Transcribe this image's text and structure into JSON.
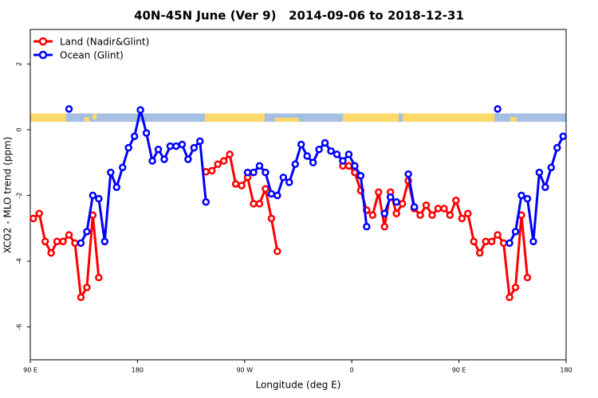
{
  "chart_data": {
    "type": "line",
    "title": "40N-45N June (Ver 9)   2014-09-06 to 2018-12-31",
    "xlabel": "Longitude (deg E)",
    "ylabel": "XCO2 - MLO trend (ppm)",
    "xlim": [
      90,
      540
    ],
    "xticks": [
      {
        "value": 90,
        "label": "90 E"
      },
      {
        "value": 180,
        "label": "180"
      },
      {
        "value": 270,
        "label": "90 W"
      },
      {
        "value": 360,
        "label": "0"
      },
      {
        "value": 450,
        "label": "90 E"
      },
      {
        "value": 540,
        "label": "180"
      }
    ],
    "ylim": [
      -7,
      3.05
    ],
    "yticks": [
      2,
      0,
      -2,
      -4,
      -6
    ],
    "legend": "top-left",
    "x": [
      92.5,
      97.5,
      102.5,
      107.5,
      112.5,
      117.5,
      122.5,
      127.5,
      132.5,
      137.5,
      142.5,
      147.5,
      152.5,
      157.5,
      162.5,
      167.5,
      172.5,
      177.5,
      182.5,
      187.5,
      192.5,
      197.5,
      202.5,
      207.5,
      212.5,
      217.5,
      222.5,
      227.5,
      232.5,
      237.5,
      242.5,
      247.5,
      252.5,
      257.5,
      262.5,
      267.5,
      272.5,
      277.5,
      282.5,
      287.5,
      292.5,
      297.5,
      302.5,
      307.5,
      312.5,
      317.5,
      322.5,
      327.5,
      332.5,
      337.5,
      342.5,
      347.5,
      352.5,
      357.5,
      362.5,
      367.5,
      372.5,
      377.5,
      382.5,
      387.5,
      392.5,
      397.5,
      402.5,
      407.5,
      412.5,
      417.5,
      422.5,
      427.5,
      432.5,
      437.5,
      442.5,
      447.5,
      452.5,
      457.5,
      462.5,
      467.5,
      472.5,
      477.5,
      482.5,
      487.5,
      492.5,
      497.5,
      502.5,
      507.5,
      512.5,
      517.5,
      522.5,
      527.5,
      532.5,
      537.5
    ],
    "series": [
      {
        "name": "Land (Nadir&Glint)",
        "color": "#ff0000",
        "values": [
          -2.7,
          -2.55,
          -3.4,
          -3.75,
          -3.4,
          -3.4,
          -3.2,
          -3.45,
          -5.1,
          -4.8,
          -2.6,
          -4.5,
          null,
          null,
          null,
          null,
          null,
          null,
          null,
          null,
          null,
          null,
          null,
          null,
          null,
          null,
          null,
          null,
          null,
          -1.28,
          -1.25,
          -1.05,
          -0.95,
          -0.75,
          -1.65,
          -1.7,
          -1.45,
          -2.25,
          -2.25,
          -1.8,
          -2.7,
          -3.7,
          null,
          null,
          null,
          null,
          null,
          null,
          null,
          null,
          null,
          null,
          -1.1,
          -1.1,
          -1.3,
          -1.85,
          -2.45,
          -2.6,
          -1.9,
          -2.95,
          -1.9,
          -2.55,
          -2.25,
          -1.55,
          -2.4,
          -2.6,
          -2.3,
          -2.6,
          -2.4,
          -2.4,
          -2.6,
          -2.15,
          -2.7,
          -2.55,
          -3.4,
          -3.75,
          -3.4,
          -3.4,
          -3.2,
          -3.45,
          -5.1,
          -4.8,
          -2.6,
          -4.5,
          null,
          null,
          null,
          null,
          null,
          null
        ]
      },
      {
        "name": "Ocean (Glint)",
        "color": "#0000ff",
        "values": [
          null,
          null,
          null,
          null,
          null,
          null,
          0.63,
          null,
          -3.45,
          -3.1,
          -2.0,
          -2.1,
          -3.4,
          -1.3,
          -1.75,
          -1.15,
          -0.55,
          -0.2,
          0.6,
          -0.1,
          -0.95,
          -0.6,
          -0.9,
          -0.5,
          -0.5,
          -0.45,
          -0.9,
          -0.55,
          -0.35,
          -2.2,
          null,
          null,
          null,
          null,
          null,
          null,
          -1.3,
          -1.3,
          -1.1,
          -1.3,
          -1.95,
          -2.0,
          -1.45,
          -1.6,
          -1.05,
          -0.45,
          -0.8,
          -1.0,
          -0.6,
          -0.4,
          -0.65,
          -0.75,
          -0.95,
          -0.75,
          -1.1,
          -1.4,
          -2.95,
          null,
          null,
          -2.55,
          -2.05,
          -2.2,
          null,
          -1.35,
          -2.35,
          null,
          null,
          null,
          null,
          null,
          null,
          null,
          null,
          null,
          null,
          null,
          null,
          null,
          0.63,
          null,
          -3.45,
          -3.1,
          -2.0,
          -2.1,
          -3.4,
          -1.3,
          -1.75,
          -1.15,
          -0.55,
          -0.2
        ]
      }
    ]
  }
}
